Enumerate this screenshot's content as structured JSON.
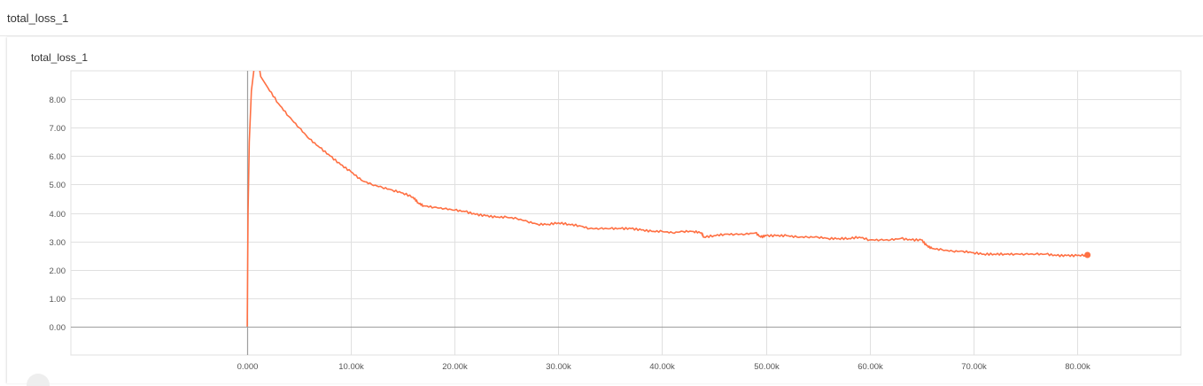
{
  "section": {
    "title": "total_loss_1"
  },
  "card": {
    "title": "total_loss_1"
  },
  "colors": {
    "series": "#ff7043",
    "grid": "#e0e0e0",
    "axis": "#9e9e9e"
  },
  "chart_data": {
    "type": "line",
    "title": "total_loss_1",
    "xlabel": "",
    "ylabel": "",
    "xlim": [
      -17000,
      90000
    ],
    "ylim": [
      -1.0,
      9.0
    ],
    "grid": true,
    "x_ticks": [
      0,
      10000,
      20000,
      30000,
      40000,
      50000,
      60000,
      70000,
      80000
    ],
    "x_tick_labels": [
      "0.000",
      "10.00k",
      "20.00k",
      "30.00k",
      "40.00k",
      "50.00k",
      "60.00k",
      "70.00k",
      "80.00k"
    ],
    "y_ticks": [
      0,
      1,
      2,
      3,
      4,
      5,
      6,
      7,
      8
    ],
    "y_tick_labels": [
      "0.00",
      "1.00",
      "2.00",
      "3.00",
      "4.00",
      "5.00",
      "6.00",
      "7.00",
      "8.00"
    ],
    "series": [
      {
        "name": "",
        "color": "#ff7043",
        "x": [
          0,
          80,
          200,
          400,
          700,
          1000,
          1300,
          2000,
          3000,
          4000,
          5000,
          6000,
          7000,
          8000,
          9000,
          10000,
          11000,
          12000,
          13000,
          14000,
          15000,
          16000,
          16500,
          17000,
          18000,
          19000,
          20000,
          21000,
          22000,
          23000,
          24000,
          25000,
          26000,
          27000,
          28000,
          29000,
          30000,
          31000,
          32000,
          33000,
          34000,
          35000,
          36000,
          37000,
          38000,
          39000,
          40000,
          41000,
          42000,
          43000,
          43800,
          44000,
          45000,
          46000,
          47000,
          48000,
          49000,
          49500,
          50000,
          51000,
          52000,
          53000,
          54000,
          55000,
          56000,
          57000,
          58000,
          59000,
          60000,
          61000,
          62000,
          63000,
          64000,
          65000,
          65500,
          66000,
          67000,
          68000,
          69000,
          70000,
          71000,
          72000,
          73000,
          74000,
          75000,
          76000,
          77000,
          78000,
          79000,
          80000,
          81000
        ],
        "values": [
          0.0,
          4.0,
          6.5,
          8.3,
          9.2,
          9.5,
          8.8,
          8.4,
          7.85,
          7.4,
          7.0,
          6.6,
          6.3,
          6.0,
          5.7,
          5.45,
          5.15,
          5.0,
          4.9,
          4.8,
          4.7,
          4.55,
          4.35,
          4.25,
          4.2,
          4.15,
          4.1,
          4.05,
          3.95,
          3.9,
          3.85,
          3.85,
          3.8,
          3.7,
          3.6,
          3.6,
          3.65,
          3.6,
          3.55,
          3.45,
          3.45,
          3.45,
          3.45,
          3.45,
          3.4,
          3.35,
          3.35,
          3.3,
          3.35,
          3.35,
          3.3,
          3.15,
          3.2,
          3.25,
          3.25,
          3.25,
          3.3,
          3.15,
          3.2,
          3.2,
          3.2,
          3.15,
          3.15,
          3.15,
          3.1,
          3.1,
          3.1,
          3.15,
          3.05,
          3.05,
          3.05,
          3.1,
          3.05,
          3.05,
          2.85,
          2.75,
          2.7,
          2.65,
          2.65,
          2.6,
          2.55,
          2.55,
          2.55,
          2.55,
          2.55,
          2.55,
          2.55,
          2.5,
          2.5,
          2.5,
          2.52
        ]
      }
    ]
  }
}
